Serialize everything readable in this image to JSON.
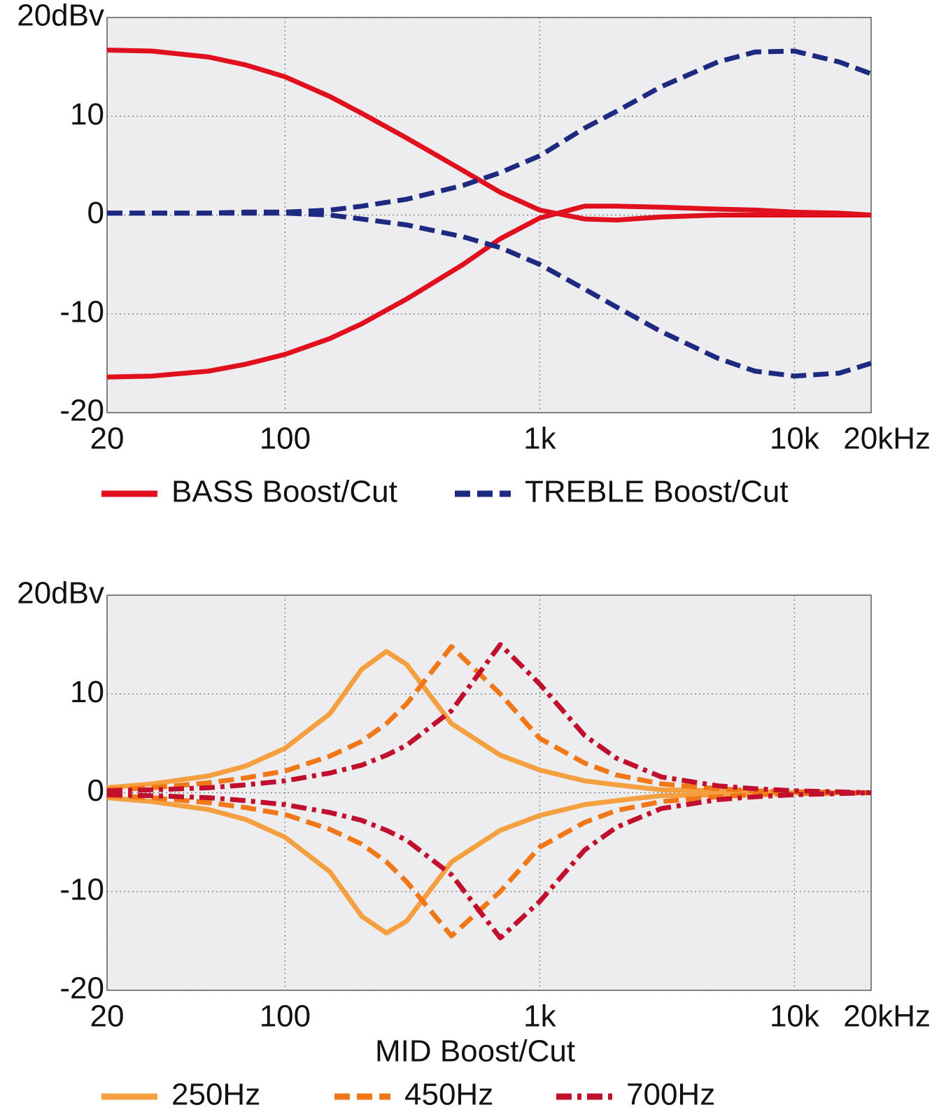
{
  "chart_data": [
    {
      "type": "line",
      "xlog": true,
      "grid": true,
      "xlim": [
        20,
        20000
      ],
      "ylim": [
        -20,
        20
      ],
      "xticks": [
        20,
        100,
        {
          "value": 1000,
          "label": "1k"
        },
        {
          "value": 10000,
          "label": "10k"
        },
        {
          "value": 20000,
          "label": "20kHz"
        }
      ],
      "yticks": [
        {
          "value": 20,
          "label": "20dBv"
        },
        10,
        0,
        -10,
        -20
      ],
      "x": [
        20,
        30,
        50,
        70,
        100,
        150,
        200,
        300,
        500,
        700,
        1000,
        1500,
        2000,
        3000,
        5000,
        7000,
        10000,
        15000,
        20000
      ],
      "series": [
        {
          "name": "BASS Boost/Cut",
          "color": "#e0101e",
          "dash": "solid",
          "values": [
            16.7,
            16.6,
            16,
            15.2,
            14,
            12,
            10.3,
            7.8,
            4.5,
            2.3,
            0.5,
            -0.4,
            -0.5,
            -0.2,
            0,
            0,
            0,
            0,
            0
          ],
          "cut": [
            -16.4,
            -16.3,
            -15.8,
            -15.1,
            -14.1,
            -12.5,
            -11,
            -8.5,
            -5,
            -2.4,
            -0.3,
            0.9,
            0.9,
            0.8,
            0.6,
            0.5,
            0.3,
            0.2,
            0
          ]
        },
        {
          "name": "TREBLE Boost/Cut",
          "color": "#1e2a80",
          "dash": "dashed",
          "values": [
            0.2,
            0.2,
            0.2,
            0.3,
            0.3,
            0.5,
            0.9,
            1.6,
            3,
            4.3,
            6,
            8.8,
            10.5,
            13,
            15.5,
            16.5,
            16.6,
            15.5,
            14.3
          ],
          "cut": [
            0.2,
            0.2,
            0.2,
            0.2,
            0.2,
            0,
            -0.4,
            -1,
            -2.2,
            -3.3,
            -5,
            -7.5,
            -9.3,
            -11.8,
            -14.5,
            -15.8,
            -16.3,
            -16,
            -15
          ]
        }
      ]
    },
    {
      "type": "line",
      "xlog": true,
      "grid": true,
      "title": "MID Boost/Cut",
      "xlim": [
        20,
        20000
      ],
      "ylim": [
        -20,
        20
      ],
      "xticks": [
        20,
        100,
        {
          "value": 1000,
          "label": "1k"
        },
        {
          "value": 10000,
          "label": "10k"
        },
        {
          "value": 20000,
          "label": "20kHz"
        }
      ],
      "yticks": [
        {
          "value": 20,
          "label": "20dBv"
        },
        10,
        0,
        -10,
        -20
      ],
      "x": [
        20,
        30,
        50,
        70,
        100,
        150,
        200,
        250,
        300,
        450,
        700,
        1000,
        1500,
        2000,
        3000,
        5000,
        7000,
        10000,
        20000
      ],
      "series": [
        {
          "name": "250Hz",
          "color": "#f5a040",
          "dash": "solid",
          "values": [
            0.5,
            0.9,
            1.7,
            2.7,
            4.5,
            8,
            12.5,
            14.3,
            13,
            7,
            3.8,
            2.3,
            1.2,
            0.8,
            0.3,
            0.2,
            0.1,
            0,
            0
          ],
          "cut": [
            -0.5,
            -0.9,
            -1.7,
            -2.7,
            -4.5,
            -8,
            -12.5,
            -14.2,
            -13,
            -7,
            -3.8,
            -2.3,
            -1.2,
            -0.8,
            -0.3,
            -0.2,
            -0.1,
            0,
            0
          ]
        },
        {
          "name": "450Hz",
          "color": "#f07818",
          "dash": "dashed",
          "values": [
            0.3,
            0.5,
            1,
            1.5,
            2.2,
            3.7,
            5.2,
            7,
            9,
            14.8,
            10,
            5.5,
            3,
            1.8,
            0.9,
            0.4,
            0.2,
            0.1,
            0
          ],
          "cut": [
            -0.3,
            -0.5,
            -1,
            -1.5,
            -2.2,
            -3.7,
            -5.2,
            -7,
            -9,
            -14.5,
            -10,
            -5.5,
            -3,
            -1.8,
            -0.9,
            -0.4,
            -0.2,
            -0.1,
            0
          ]
        },
        {
          "name": "700Hz",
          "color": "#c0102e",
          "dash": "dashdot",
          "values": [
            0.2,
            0.3,
            0.5,
            0.8,
            1.2,
            2,
            2.8,
            3.8,
            4.8,
            8.3,
            15,
            11,
            5.8,
            3.5,
            1.6,
            0.7,
            0.4,
            0.2,
            0
          ],
          "cut": [
            -0.2,
            -0.3,
            -0.5,
            -0.8,
            -1.2,
            -2,
            -2.8,
            -3.8,
            -4.8,
            -8.3,
            -14.7,
            -11,
            -5.8,
            -3.5,
            -1.6,
            -0.7,
            -0.4,
            -0.2,
            0
          ]
        }
      ]
    }
  ]
}
